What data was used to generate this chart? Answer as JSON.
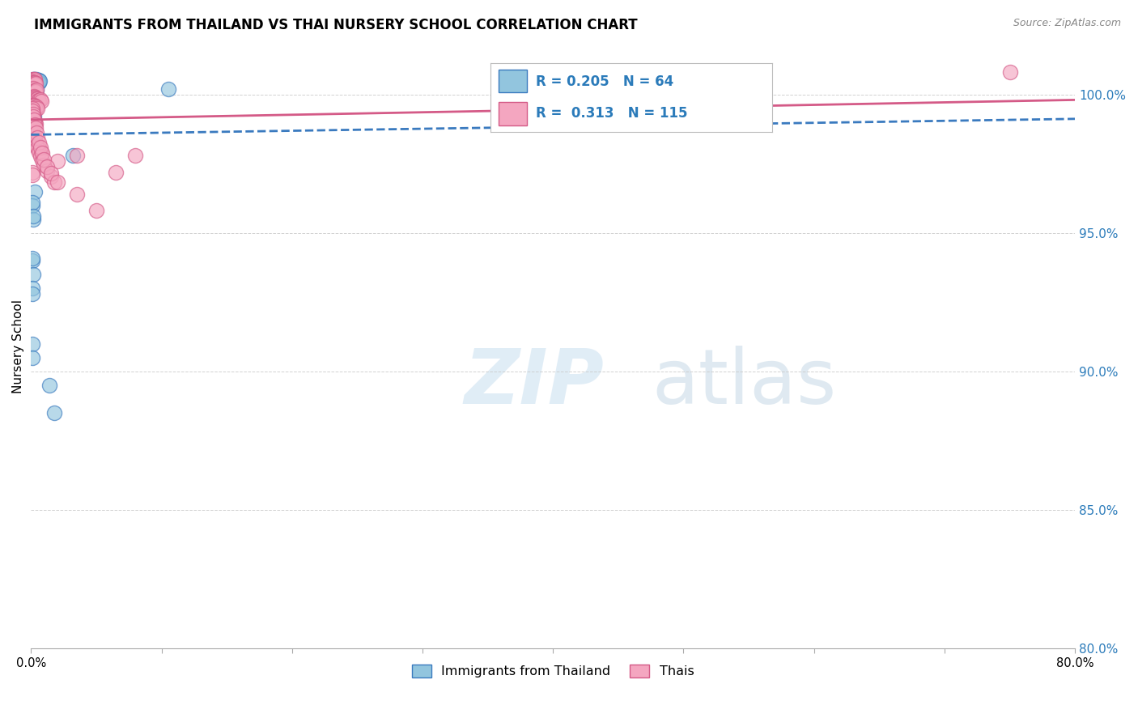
{
  "title": "IMMIGRANTS FROM THAILAND VS THAI NURSERY SCHOOL CORRELATION CHART",
  "source": "Source: ZipAtlas.com",
  "ylabel": "Nursery School",
  "legend_label1": "Immigrants from Thailand",
  "legend_label2": "Thais",
  "r1": 0.205,
  "n1": 64,
  "r2": 0.313,
  "n2": 115,
  "color1": "#92c5de",
  "color2": "#f4a6c0",
  "line_color1": "#3a7abf",
  "line_color2": "#d45a87",
  "watermark_zip": "ZIP",
  "watermark_atlas": "atlas",
  "xlim": [
    0.0,
    80.0
  ],
  "ylim": [
    80.0,
    101.8
  ],
  "yticks": [
    80.0,
    85.0,
    90.0,
    95.0,
    100.0
  ],
  "xticks": [
    0.0,
    10.0,
    20.0,
    30.0,
    40.0,
    50.0,
    60.0,
    70.0,
    80.0
  ],
  "blue_x": [
    0.15,
    0.18,
    0.22,
    0.25,
    0.28,
    0.3,
    0.32,
    0.35,
    0.38,
    0.4,
    0.42,
    0.45,
    0.48,
    0.5,
    0.52,
    0.55,
    0.58,
    0.6,
    0.62,
    0.65,
    0.12,
    0.14,
    0.16,
    0.2,
    0.24,
    0.26,
    0.3,
    0.34,
    0.36,
    0.4,
    0.1,
    0.12,
    0.15,
    0.18,
    0.2,
    0.22,
    0.25,
    0.28,
    0.3,
    0.35,
    0.1,
    0.12,
    0.15,
    3.2,
    0.18,
    0.2,
    0.22,
    0.25,
    0.1,
    0.3,
    0.1,
    0.12,
    0.14,
    0.16,
    10.5,
    0.1,
    0.12,
    0.14,
    0.1,
    0.12,
    0.1,
    1.8,
    1.4,
    0.12
  ],
  "blue_y": [
    100.55,
    100.52,
    100.55,
    100.5,
    100.53,
    100.55,
    100.48,
    100.52,
    100.5,
    100.55,
    100.45,
    100.48,
    100.52,
    100.5,
    100.46,
    100.5,
    100.48,
    100.52,
    100.44,
    100.5,
    100.2,
    100.15,
    100.18,
    100.22,
    100.1,
    100.12,
    100.08,
    100.15,
    100.1,
    100.18,
    99.8,
    99.85,
    99.75,
    99.8,
    99.9,
    99.78,
    99.82,
    99.76,
    99.88,
    99.8,
    99.4,
    99.35,
    99.42,
    97.8,
    99.1,
    99.2,
    99.05,
    98.9,
    98.6,
    96.5,
    96.0,
    96.1,
    95.5,
    95.6,
    100.2,
    94.0,
    94.1,
    93.5,
    93.0,
    92.8,
    91.0,
    88.5,
    89.5,
    90.5
  ],
  "pink_x": [
    0.1,
    0.12,
    0.15,
    0.18,
    0.2,
    0.22,
    0.25,
    0.28,
    0.3,
    0.32,
    0.1,
    0.12,
    0.15,
    0.18,
    0.2,
    0.22,
    0.25,
    0.28,
    0.3,
    0.35,
    0.1,
    0.12,
    0.15,
    0.18,
    0.22,
    0.25,
    0.28,
    0.3,
    0.35,
    0.4,
    0.1,
    0.12,
    0.15,
    0.2,
    0.25,
    0.3,
    0.35,
    0.4,
    0.45,
    0.5,
    0.55,
    0.6,
    0.7,
    0.8,
    0.1,
    0.12,
    0.15,
    0.18,
    0.2,
    0.22,
    0.25,
    0.3,
    0.35,
    0.4,
    0.45,
    0.1,
    0.12,
    0.15,
    0.18,
    0.22,
    0.28,
    0.35,
    2.0,
    3.5,
    5.0,
    6.5,
    8.0,
    0.1,
    0.12,
    0.15,
    0.2,
    0.25,
    0.3,
    0.35,
    0.42,
    0.5,
    0.6,
    0.7,
    0.8,
    0.1,
    0.12,
    0.15,
    0.18,
    0.22,
    0.28,
    0.35,
    0.42,
    0.5,
    0.6,
    0.7,
    0.82,
    1.0,
    1.2,
    1.5,
    1.8,
    0.1,
    0.12,
    0.15,
    0.18,
    0.22,
    0.28,
    0.35,
    0.42,
    0.5,
    0.6,
    0.7,
    0.85,
    1.0,
    1.2,
    1.5,
    2.0,
    3.5,
    75.0,
    0.1,
    0.12
  ],
  "pink_y": [
    100.55,
    100.52,
    100.5,
    100.48,
    100.55,
    100.5,
    100.52,
    100.48,
    100.5,
    100.55,
    100.42,
    100.45,
    100.4,
    100.44,
    100.38,
    100.42,
    100.4,
    100.44,
    100.36,
    100.4,
    100.2,
    100.15,
    100.18,
    100.22,
    100.1,
    100.12,
    100.08,
    100.15,
    100.1,
    100.18,
    99.9,
    99.85,
    99.88,
    99.92,
    99.86,
    99.9,
    99.88,
    99.84,
    99.82,
    99.86,
    99.8,
    99.78,
    99.82,
    99.76,
    99.6,
    99.55,
    99.58,
    99.62,
    99.56,
    99.6,
    99.58,
    99.52,
    99.48,
    99.54,
    99.5,
    99.2,
    99.15,
    99.18,
    99.12,
    99.08,
    99.02,
    98.95,
    97.6,
    97.8,
    95.8,
    97.2,
    97.8,
    98.5,
    98.42,
    98.38,
    98.42,
    98.36,
    98.3,
    98.25,
    98.18,
    98.12,
    98.05,
    97.98,
    97.9,
    98.8,
    98.72,
    98.65,
    98.58,
    98.5,
    98.4,
    98.28,
    98.16,
    98.05,
    97.92,
    97.78,
    97.62,
    97.45,
    97.25,
    97.05,
    96.85,
    99.5,
    99.4,
    99.3,
    99.2,
    99.08,
    98.92,
    98.78,
    98.62,
    98.45,
    98.28,
    98.1,
    97.88,
    97.65,
    97.4,
    97.15,
    96.85,
    96.4,
    100.8,
    97.2,
    97.1
  ]
}
